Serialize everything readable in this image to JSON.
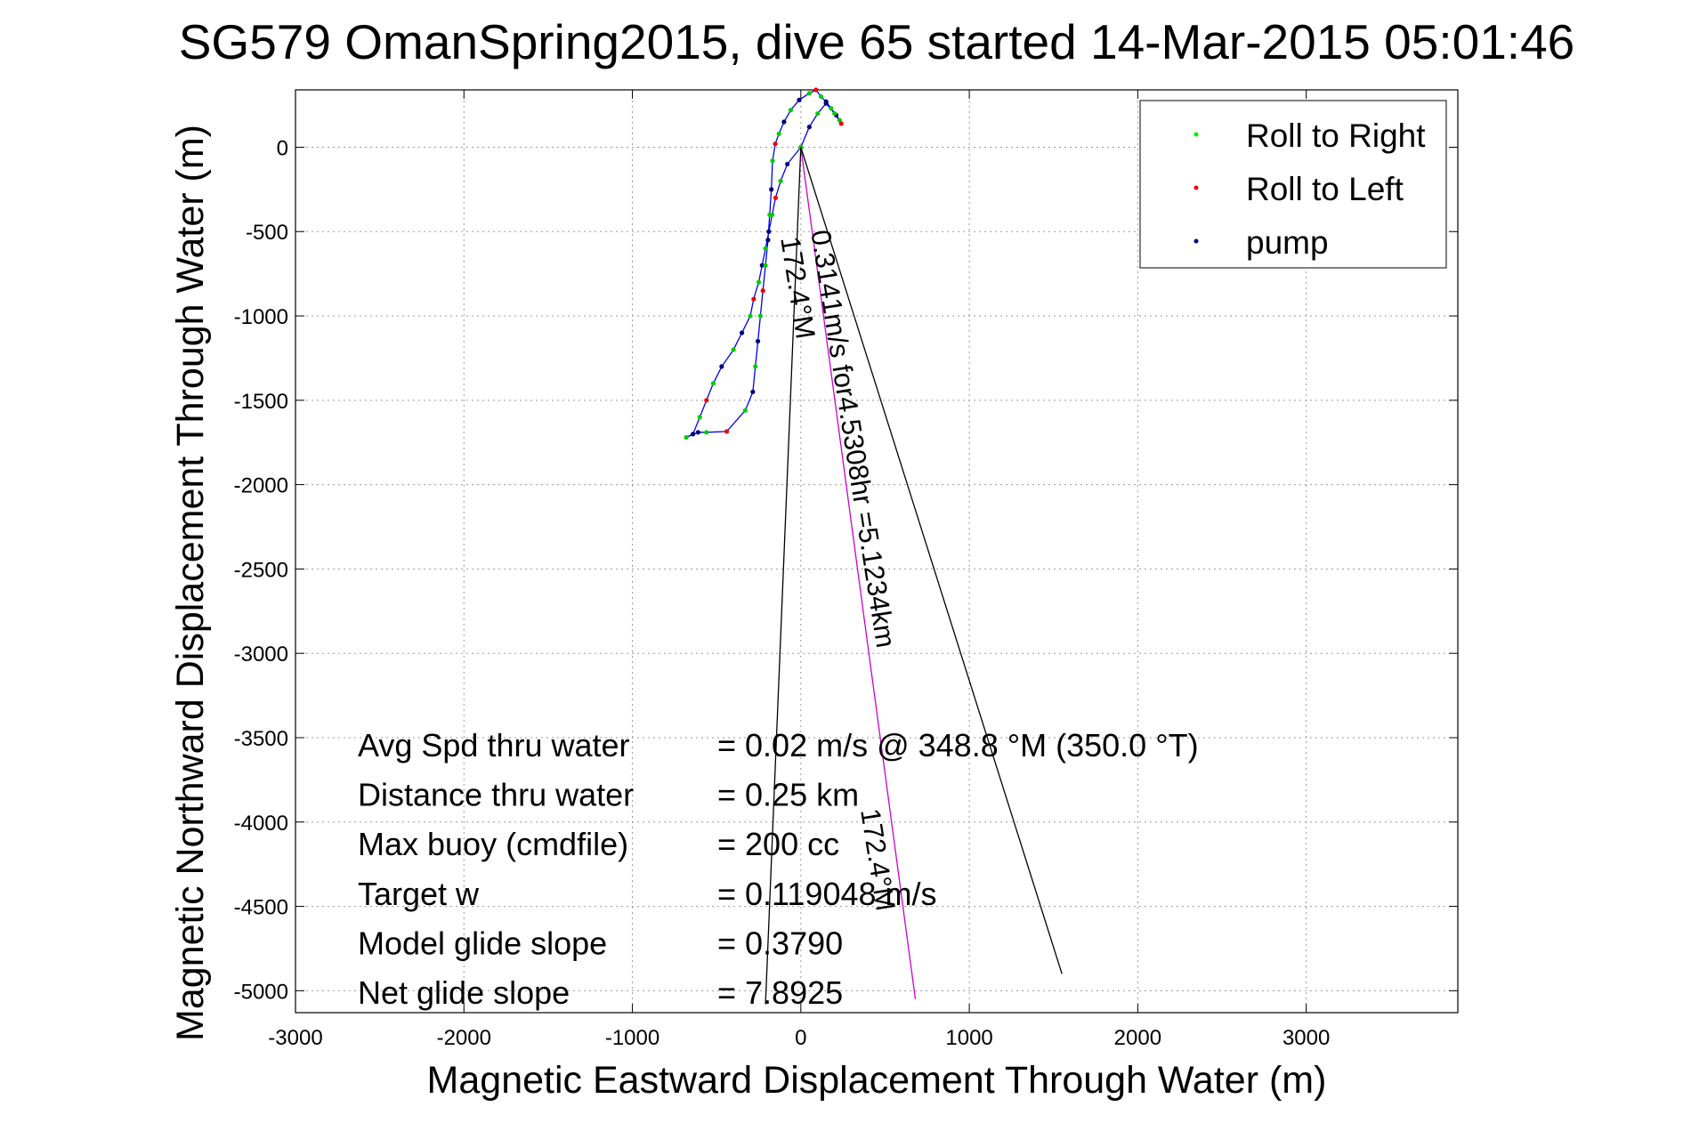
{
  "chart_data": {
    "type": "line",
    "title": "SG579 OmanSpring2015, dive 65 started 14-Mar-2015 05:01:46",
    "xlabel": "Magnetic Eastward Displacement Through Water (m)",
    "ylabel": "Magnetic Northward Displacement Through Water (m)",
    "xlim": [
      -3000,
      3900
    ],
    "ylim": [
      -5130,
      340
    ],
    "xticks": [
      -3000,
      -2000,
      -1000,
      0,
      1000,
      2000,
      3000
    ],
    "yticks": [
      -5000,
      -4500,
      -4000,
      -3500,
      -3000,
      -2500,
      -2000,
      -1500,
      -1000,
      -500,
      0
    ],
    "grid": true,
    "legend_position": "top-right",
    "legend": [
      {
        "label": "Roll to Right",
        "color": "#00ee00"
      },
      {
        "label": "Roll to Left",
        "color": "#ee0000"
      },
      {
        "label": "pump",
        "color": "#000080"
      }
    ],
    "series": [
      {
        "kind": "track",
        "color": "#0000ee",
        "x": [
          0,
          -80,
          -120,
          -150,
          -170,
          -190,
          -210,
          -230,
          -250,
          -280,
          -300,
          -350,
          -400,
          -470,
          -520,
          -560,
          -600,
          -640,
          -680,
          -610,
          -560,
          -440,
          -330,
          -285,
          -270,
          -255,
          -240,
          -225,
          -210,
          -195,
          -185,
          -175,
          -168,
          -152,
          -130,
          -100,
          -60,
          -10,
          50,
          90,
          120,
          150,
          180,
          210,
          230,
          240,
          200,
          150,
          100,
          50,
          0
        ],
        "y": [
          0,
          -100,
          -200,
          -300,
          -400,
          -500,
          -600,
          -700,
          -800,
          -900,
          -1000,
          -1100,
          -1200,
          -1300,
          -1400,
          -1500,
          -1600,
          -1700,
          -1720,
          -1690,
          -1690,
          -1685,
          -1560,
          -1450,
          -1300,
          -1150,
          -1000,
          -850,
          -700,
          -550,
          -400,
          -250,
          -80,
          20,
          80,
          150,
          220,
          280,
          320,
          340,
          300,
          270,
          230,
          190,
          160,
          140,
          200,
          260,
          200,
          120,
          0
        ]
      },
      {
        "kind": "heading-line",
        "color": "#cc00cc",
        "x": [
          0,
          680
        ],
        "y": [
          0,
          -5050
        ]
      },
      {
        "kind": "speed-arrow",
        "color": "#000000",
        "x": [
          -210,
          0,
          1550
        ],
        "y": [
          -5080,
          0,
          -4900
        ]
      }
    ],
    "annotations": [
      {
        "text": "0.3141m/s for4.5308hr =5.1234km",
        "x": 60,
        "y": -500,
        "angle": 81
      },
      {
        "text": "172.4°M",
        "x": -120,
        "y": -540,
        "angle": 81
      },
      {
        "text": "172.4°M",
        "x": 355,
        "y": -3930,
        "angle": 81
      }
    ],
    "stats": [
      {
        "label": "Avg Spd thru water",
        "value": "=  0.02 m/s @ 348.8 °M (350.0 °T)"
      },
      {
        "label": "Distance thru water",
        "value": "=  0.25 km"
      },
      {
        "label": "Max buoy (cmdfile)",
        "value": "= 200 cc"
      },
      {
        "label": "Target w",
        "value": "= 0.119048 m/s"
      },
      {
        "label": "Model glide slope",
        "value": "= 0.3790"
      },
      {
        "label": "Net glide slope",
        "value": "= 7.8925"
      }
    ]
  }
}
